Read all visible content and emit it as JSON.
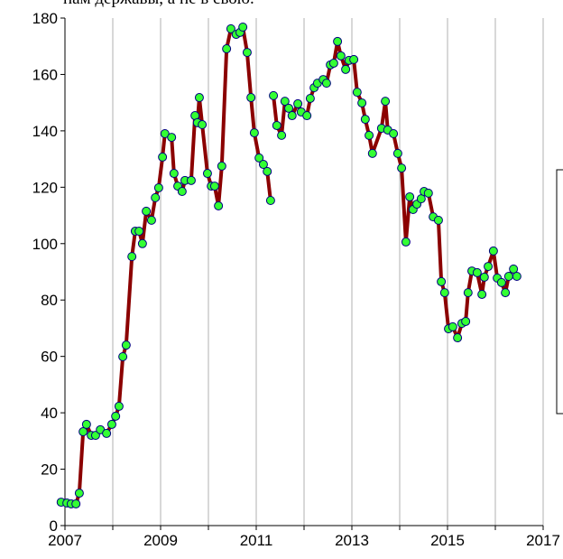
{
  "chart_data": {
    "type": "line",
    "annotation": "нам державы, а не в свою.",
    "x": [
      2006.92,
      2007.04,
      2007.13,
      2007.23,
      2007.3,
      2007.38,
      2007.45,
      2007.55,
      2007.64,
      2007.74,
      2007.87,
      2007.98,
      2008.06,
      2008.13,
      2008.21,
      2008.28,
      2008.4,
      2008.47,
      2008.55,
      2008.62,
      2008.7,
      2008.81,
      2008.89,
      2008.96,
      2009.04,
      2009.09,
      2009.23,
      2009.28,
      2009.36,
      2009.45,
      2009.51,
      2009.64,
      2009.72,
      2009.77,
      2009.81,
      2009.87,
      2009.98,
      2010.06,
      2010.13,
      2010.21,
      2010.28,
      2010.38,
      2010.47,
      2010.58,
      2010.66,
      2010.72,
      2010.81,
      2010.89,
      2010.96,
      2011.06,
      2011.15,
      2011.23,
      2011.3,
      null,
      2011.36,
      2011.43,
      2011.53,
      2011.6,
      2011.68,
      2011.75,
      2011.87,
      2011.94,
      2012.06,
      2012.13,
      2012.21,
      2012.28,
      2012.4,
      2012.47,
      2012.55,
      2012.62,
      2012.7,
      2012.77,
      2012.87,
      2012.94,
      2013.04,
      2013.11,
      2013.21,
      2013.28,
      2013.36,
      2013.43,
      2013.62,
      2013.7,
      2013.75,
      2013.87,
      2013.96,
      2014.04,
      2014.13,
      2014.21,
      2014.28,
      2014.36,
      2014.45,
      2014.51,
      2014.6,
      2014.7,
      2014.81,
      2014.87,
      2014.94,
      2015.02,
      2015.11,
      2015.21,
      2015.3,
      2015.38,
      2015.43,
      2015.51,
      2015.62,
      2015.72,
      2015.77,
      2015.85,
      2015.96,
      2016.04,
      2016.13,
      2016.21,
      2016.28,
      2016.38,
      2016.45
    ],
    "series": [
      {
        "color": "#8b0000",
        "marker_color": "#33ff33",
        "marker_edge": "#000080",
        "values": [
          8.3,
          8,
          7.7,
          7.7,
          11.5,
          33.3,
          35.9,
          32,
          32,
          34,
          32.7,
          35.9,
          38.8,
          42.3,
          59.9,
          64,
          95.4,
          104.4,
          104.4,
          100,
          111.5,
          108.3,
          116.3,
          119.8,
          130.7,
          139,
          137.7,
          124.9,
          120.4,
          118.5,
          122.4,
          122.4,
          145.4,
          142.9,
          151.8,
          142.2,
          124.9,
          120.4,
          120.4,
          113.4,
          127.5,
          169.1,
          176.2,
          174.2,
          174.9,
          176.8,
          167.8,
          151.8,
          139.3,
          130.4,
          128.1,
          125.6,
          115.3,
          null,
          152.5,
          141.9,
          138.4,
          150.5,
          148,
          145.4,
          149.6,
          146.7,
          145.4,
          151.5,
          155.3,
          156.9,
          158.2,
          156.9,
          163.4,
          164,
          171.7,
          166.6,
          161.8,
          165,
          165.3,
          153.7,
          149.9,
          144.1,
          138.4,
          132,
          140.9,
          150.5,
          140.3,
          139,
          132,
          126.8,
          100.6,
          116.6,
          112.1,
          114,
          115.9,
          118.5,
          117.9,
          109.5,
          108.3,
          86.5,
          82.6,
          69.8,
          70.5,
          66.6,
          71.7,
          72.4,
          82.6,
          90.3,
          89.7,
          82,
          88.1,
          91.9,
          97.4,
          87.8,
          86.2,
          82.6,
          88.4,
          91,
          88.4
        ]
      }
    ],
    "xlim": [
      2007,
      2017
    ],
    "xticks": [
      2007,
      2009,
      2011,
      2013,
      2015,
      2017
    ],
    "xminor": [
      2008,
      2010,
      2012,
      2014,
      2016
    ],
    "ylim": [
      0,
      180
    ],
    "yticks": [
      0,
      20,
      40,
      60,
      80,
      100,
      120,
      140,
      160,
      180
    ],
    "grid": true
  }
}
